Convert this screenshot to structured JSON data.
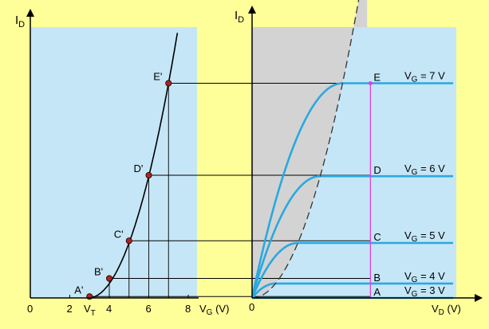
{
  "colors": {
    "background": "#ffff99",
    "panel": "#c5e6f7",
    "saturation_region": "#d3d3d3",
    "curve": "#29a9e0",
    "transfer_curve": "#000000",
    "point": "#b22222",
    "sample_line": "#e040e0"
  },
  "left": {
    "y_axis_label": "I",
    "y_axis_sub": "D",
    "x_axis_label": "V",
    "x_axis_sub": "G",
    "x_axis_unit": " (V)",
    "ticks": [
      {
        "value": 0,
        "label": "0"
      },
      {
        "value": 2,
        "label": "2"
      },
      {
        "value": 4,
        "label": "4"
      },
      {
        "value": 6,
        "label": "6"
      },
      {
        "value": 8,
        "label": "8"
      }
    ],
    "vt_label": "V",
    "vt_sub": "T",
    "points": [
      {
        "label": "A'",
        "vg": 3,
        "id": 0.05
      },
      {
        "label": "B'",
        "vg": 4,
        "id": 0.7
      },
      {
        "label": "C'",
        "vg": 5,
        "id": 2.05
      },
      {
        "label": "D'",
        "vg": 6,
        "id": 4.4
      },
      {
        "label": "E'",
        "vg": 7,
        "id": 7.7
      }
    ]
  },
  "right": {
    "y_axis_label": "I",
    "y_axis_sub": "D",
    "x_axis_label": "V",
    "x_axis_sub": "D",
    "x_axis_unit": " (V)",
    "origin_label": "0",
    "curves": [
      {
        "point": "A",
        "label": "V",
        "sub": "G",
        "value": " = 3 V",
        "vg": 3
      },
      {
        "point": "B",
        "label": "V",
        "sub": "G",
        "value": " = 4 V",
        "vg": 4
      },
      {
        "point": "C",
        "label": "V",
        "sub": "G",
        "value": " = 5 V",
        "vg": 5
      },
      {
        "point": "D",
        "label": "V",
        "sub": "G",
        "value": " = 6 V",
        "vg": 6
      },
      {
        "point": "E",
        "label": "V",
        "sub": "G",
        "value": " = 7 V",
        "vg": 7
      }
    ]
  }
}
